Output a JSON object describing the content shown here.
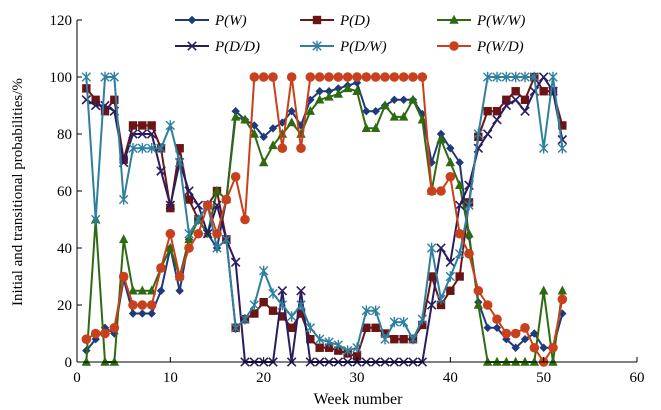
{
  "chart_data": {
    "type": "line",
    "xlabel": "Week number",
    "ylabel": "Initial and transitional probabilities/%",
    "xlim": [
      0,
      60
    ],
    "ylim": [
      0,
      120
    ],
    "xticks": [
      0,
      10,
      20,
      30,
      40,
      50,
      60
    ],
    "yticks": [
      0,
      20,
      40,
      60,
      80,
      100,
      120
    ],
    "grid": false,
    "legend": "top, inside plot, 3 columns",
    "x": [
      1,
      2,
      3,
      4,
      5,
      6,
      7,
      8,
      9,
      10,
      11,
      12,
      13,
      14,
      15,
      16,
      17,
      18,
      19,
      20,
      21,
      22,
      23,
      24,
      25,
      26,
      27,
      28,
      29,
      30,
      31,
      32,
      33,
      34,
      35,
      36,
      37,
      38,
      39,
      40,
      41,
      42,
      43,
      44,
      45,
      46,
      47,
      48,
      49,
      50,
      51,
      52
    ],
    "series": [
      {
        "name": "P(W)",
        "color": "#1f3a7a",
        "marker": "diamond",
        "values": [
          4,
          8,
          12,
          10,
          29,
          17,
          17,
          17,
          25,
          40,
          25,
          43,
          50,
          45,
          40,
          57,
          88,
          85,
          83,
          79,
          82,
          84,
          88,
          83,
          92,
          95,
          95,
          96,
          97,
          98,
          88,
          88,
          90,
          92,
          92,
          92,
          87,
          70,
          80,
          75,
          70,
          44,
          21,
          12,
          12,
          8,
          5,
          8,
          10,
          5,
          5,
          17
        ]
      },
      {
        "name": "P(D)",
        "color": "#6b1414",
        "marker": "square",
        "values": [
          96,
          92,
          88,
          92,
          71,
          83,
          83,
          83,
          75,
          54,
          75,
          57,
          50,
          55,
          60,
          43,
          12,
          15,
          17,
          21,
          18,
          16,
          12,
          17,
          8,
          5,
          5,
          4,
          3,
          2,
          12,
          12,
          10,
          8,
          8,
          8,
          13,
          30,
          20,
          25,
          30,
          56,
          79,
          88,
          88,
          92,
          95,
          92,
          100,
          95,
          95,
          83
        ]
      },
      {
        "name": "P(W/W)",
        "color": "#2e6b10",
        "marker": "triangle",
        "values": [
          0,
          50,
          0,
          0,
          43,
          25,
          25,
          25,
          33,
          40,
          30,
          43,
          50,
          45,
          60,
          57,
          86,
          85,
          80,
          70,
          76,
          80,
          84,
          80,
          88,
          92,
          93,
          94,
          96,
          95,
          82,
          82,
          90,
          86,
          86,
          92,
          85,
          60,
          78,
          70,
          62,
          45,
          20,
          0,
          0,
          0,
          0,
          0,
          0,
          25,
          0,
          25
        ]
      },
      {
        "name": "P(D/D)",
        "color": "#2b1c5e",
        "marker": "x",
        "values": [
          92,
          90,
          90,
          88,
          70,
          80,
          80,
          80,
          67,
          55,
          70,
          60,
          55,
          45,
          55,
          43,
          35,
          0,
          0,
          0,
          0,
          25,
          0,
          25,
          0,
          0,
          0,
          0,
          0,
          0,
          0,
          0,
          0,
          0,
          0,
          0,
          0,
          20,
          40,
          35,
          55,
          62,
          75,
          80,
          85,
          90,
          92,
          88,
          95,
          100,
          95,
          78
        ]
      },
      {
        "name": "P(D/W)",
        "color": "#2f7fa0",
        "marker": "star",
        "values": [
          100,
          50,
          100,
          100,
          57,
          75,
          75,
          75,
          75,
          83,
          70,
          45,
          50,
          55,
          40,
          43,
          12,
          15,
          20,
          32,
          24,
          20,
          16,
          20,
          12,
          8,
          7,
          6,
          4,
          5,
          18,
          18,
          8,
          14,
          14,
          8,
          15,
          40,
          22,
          30,
          38,
          55,
          80,
          100,
          100,
          100,
          100,
          100,
          100,
          75,
          100,
          75
        ]
      },
      {
        "name": "P(W/D)",
        "color": "#c8401c",
        "marker": "circle",
        "values": [
          8,
          10,
          10,
          12,
          30,
          20,
          20,
          20,
          33,
          45,
          30,
          40,
          45,
          55,
          45,
          57,
          65,
          50,
          100,
          100,
          100,
          75,
          100,
          75,
          100,
          100,
          100,
          100,
          100,
          100,
          100,
          100,
          100,
          100,
          100,
          100,
          100,
          60,
          60,
          65,
          45,
          38,
          25,
          20,
          15,
          10,
          10,
          12,
          5,
          0,
          5,
          22
        ]
      }
    ]
  }
}
